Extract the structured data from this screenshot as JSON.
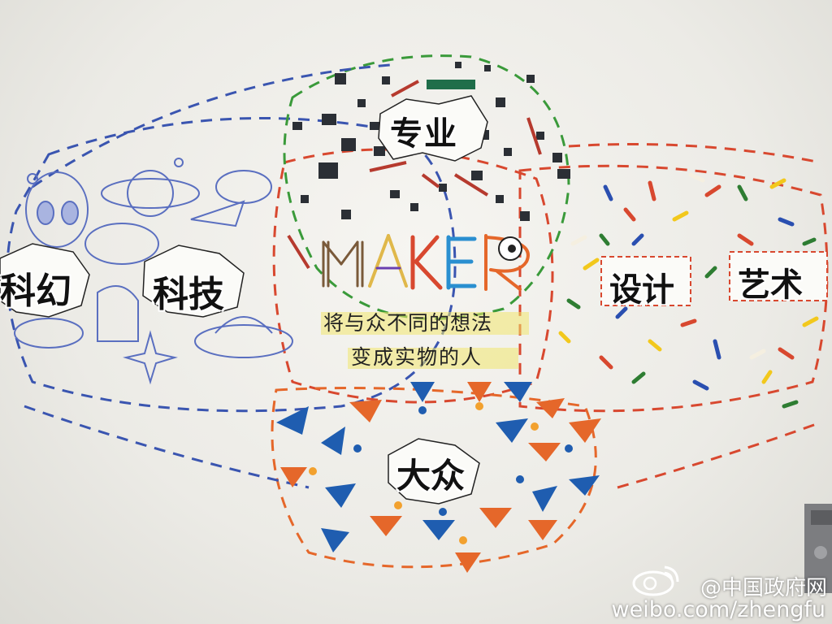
{
  "mural": {
    "top_label": "专业",
    "left_labels": [
      "科幻",
      "科技"
    ],
    "right_labels": [
      "设计",
      "艺术"
    ],
    "bottom_label": "大众",
    "logo_text": "MAKER",
    "definition_line1": "将与众不同的想法",
    "definition_line2": "变成实物的人"
  },
  "watermark": {
    "account": "@中国政府网",
    "url": "weibo.com/zhengfu",
    "logo_icon": "weibo-logo-icon"
  },
  "colors": {
    "blue_arrow": "#1f5db0",
    "orange_arrow": "#e5672a",
    "green_dash": "#3a9a3a",
    "red_dash": "#d8482f",
    "blue_dash": "#3a55b0",
    "confetti": [
      "#d8482f",
      "#2e7d32",
      "#f2c81c",
      "#2a4fb0",
      "#f5efe0"
    ]
  }
}
